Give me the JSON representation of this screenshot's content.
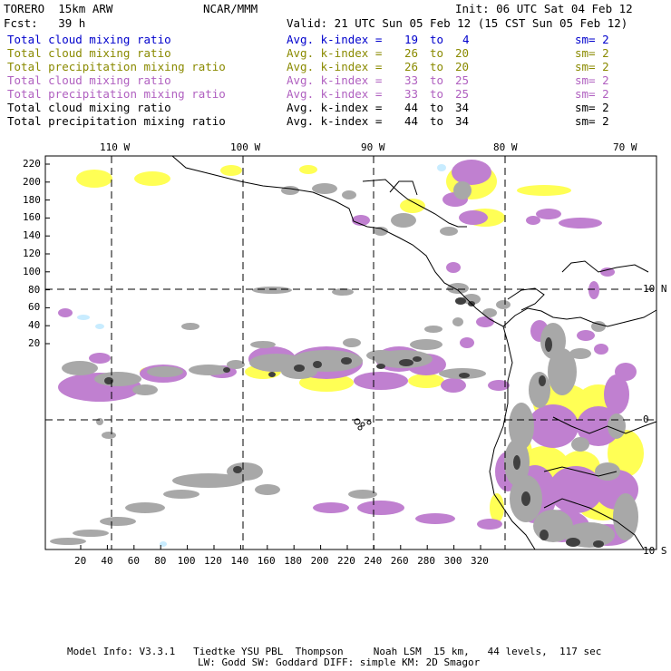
{
  "header": {
    "model": "TORERO",
    "resolution_label": "15km ARW",
    "org": "NCAR/MMM",
    "init_label": "Init: 06 UTC Sat 04 Feb 12",
    "fcst_label": "Fcst:",
    "fcst_value": "39 h",
    "valid_label": "Valid: 21 UTC Sun 05 Feb 12 (15 CST Sun 05 Feb 12)"
  },
  "legend": [
    {
      "variable": "Total cloud mixing ratio",
      "index_label": "Avg. k-index =",
      "from": "19",
      "to_label": "to",
      "to": "4",
      "smooth": "sm= 2",
      "color": "#0000cc"
    },
    {
      "variable": "Total cloud mixing ratio",
      "index_label": "Avg. k-index =",
      "from": "26",
      "to_label": "to",
      "to": "20",
      "smooth": "sm= 2",
      "color": "#8a8a00"
    },
    {
      "variable": "Total precipitation mixing ratio",
      "index_label": "Avg. k-index =",
      "from": "26",
      "to_label": "to",
      "to": "20",
      "smooth": "sm= 2",
      "color": "#8a8a00"
    },
    {
      "variable": "Total cloud mixing ratio",
      "index_label": "Avg. k-index =",
      "from": "33",
      "to_label": "to",
      "to": "25",
      "smooth": "sm= 2",
      "color": "#b060c0"
    },
    {
      "variable": "Total precipitation mixing ratio",
      "index_label": "Avg. k-index =",
      "from": "33",
      "to_label": "to",
      "to": "25",
      "smooth": "sm= 2",
      "color": "#b060c0"
    },
    {
      "variable": "Total cloud mixing ratio",
      "index_label": "Avg. k-index =",
      "from": "44",
      "to_label": "to",
      "to": "34",
      "smooth": "sm= 2",
      "color": "#000000"
    },
    {
      "variable": "Total precipitation mixing ratio",
      "index_label": "Avg. k-index =",
      "from": "44",
      "to_label": "to",
      "to": "34",
      "smooth": "sm= 2",
      "color": "#000000"
    }
  ],
  "map": {
    "longitude_labels": [
      "110 W",
      "100 W",
      "90 W",
      "80 W",
      "70 W"
    ],
    "latitude_labels": [
      "10 N",
      "0",
      "10 S"
    ],
    "x_ticks": [
      "20",
      "40",
      "60",
      "80",
      "100",
      "120",
      "140",
      "160",
      "180",
      "200",
      "220",
      "240",
      "260",
      "280",
      "300",
      "320"
    ],
    "y_ticks": [
      "220",
      "200",
      "180",
      "160",
      "140",
      "120",
      "100",
      "80",
      "60",
      "40",
      "20"
    ],
    "colors": {
      "yellow": "#ffff55",
      "violet": "#c080d0",
      "gray": "#a8a8a8",
      "dark": "#404040",
      "light_blue": "#c8ecff",
      "grid": "#000000"
    }
  },
  "footer": {
    "line1": "Model Info: V3.3.1   Tiedtke YSU PBL  Thompson     Noah LSM  15 km,   44 levels,  117 sec",
    "line2": "LW: Godd SW: Goddard DIFF: simple KM: 2D Smagor"
  }
}
